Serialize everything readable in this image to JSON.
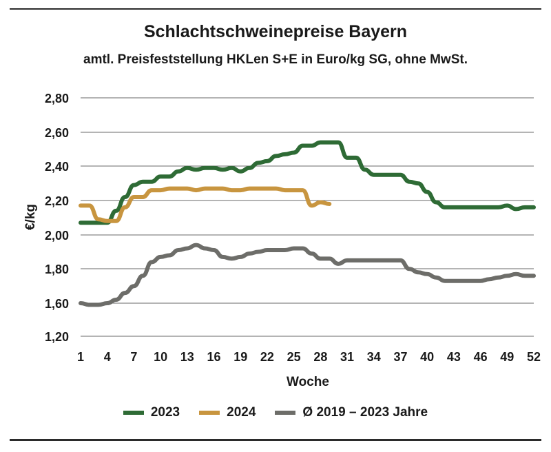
{
  "chart_data": {
    "type": "line",
    "title": "Schlachtschweinepreise Bayern",
    "subtitle": "amtl. Preisfeststellung HKLen S+E in Euro/kg SG, ohne MwSt.",
    "xlabel": "Woche",
    "ylabel": "€/kg",
    "x_ticks": [
      "1",
      "4",
      "7",
      "10",
      "13",
      "16",
      "19",
      "22",
      "25",
      "28",
      "31",
      "34",
      "37",
      "40",
      "43",
      "46",
      "49",
      "52"
    ],
    "y_ticks": [
      "2,80",
      "2,60",
      "2,40",
      "2,20",
      "2,00",
      "1,80",
      "1,60",
      "1,20"
    ],
    "xlim": [
      1,
      52
    ],
    "ylim": [
      1.2,
      2.8
    ],
    "y_scale_note": "axis jumps from 1,60 to 1,20 (one gridline step)",
    "grid": true,
    "legend_position": "bottom",
    "series": [
      {
        "name": "2023",
        "color": "#2e6b35",
        "x": [
          1,
          2,
          3,
          4,
          5,
          6,
          7,
          8,
          9,
          10,
          11,
          12,
          13,
          14,
          15,
          16,
          17,
          18,
          19,
          20,
          21,
          22,
          23,
          24,
          25,
          26,
          27,
          28,
          29,
          30,
          31,
          32,
          33,
          34,
          35,
          36,
          37,
          38,
          39,
          40,
          41,
          42,
          43,
          44,
          45,
          46,
          47,
          48,
          49,
          50,
          51,
          52
        ],
        "values": [
          2.07,
          2.07,
          2.07,
          2.07,
          2.14,
          2.22,
          2.29,
          2.31,
          2.31,
          2.34,
          2.34,
          2.37,
          2.39,
          2.38,
          2.39,
          2.39,
          2.38,
          2.39,
          2.37,
          2.39,
          2.42,
          2.43,
          2.46,
          2.47,
          2.48,
          2.52,
          2.52,
          2.54,
          2.54,
          2.54,
          2.45,
          2.45,
          2.38,
          2.35,
          2.35,
          2.35,
          2.35,
          2.31,
          2.3,
          2.25,
          2.19,
          2.16,
          2.16,
          2.16,
          2.16,
          2.16,
          2.16,
          2.16,
          2.17,
          2.15,
          2.16,
          2.16
        ]
      },
      {
        "name": "2024",
        "color": "#c8953f",
        "x": [
          1,
          2,
          3,
          4,
          5,
          6,
          7,
          8,
          9,
          10,
          11,
          12,
          13,
          14,
          15,
          16,
          17,
          18,
          19,
          20,
          21,
          22,
          23,
          24,
          25,
          26,
          27,
          28,
          29
        ],
        "values": [
          2.17,
          2.17,
          2.09,
          2.08,
          2.08,
          2.16,
          2.22,
          2.22,
          2.26,
          2.26,
          2.27,
          2.27,
          2.27,
          2.26,
          2.27,
          2.27,
          2.27,
          2.26,
          2.26,
          2.27,
          2.27,
          2.27,
          2.27,
          2.26,
          2.26,
          2.26,
          2.17,
          2.19,
          2.18
        ]
      },
      {
        "name": "Ø 2019 – 2023 Jahre",
        "color": "#6d6d69",
        "x": [
          1,
          2,
          3,
          4,
          5,
          6,
          7,
          8,
          9,
          10,
          11,
          12,
          13,
          14,
          15,
          16,
          17,
          18,
          19,
          20,
          21,
          22,
          23,
          24,
          25,
          26,
          27,
          28,
          29,
          30,
          31,
          32,
          33,
          34,
          35,
          36,
          37,
          38,
          39,
          40,
          41,
          42,
          43,
          44,
          45,
          46,
          47,
          48,
          49,
          50,
          51,
          52
        ],
        "values": [
          1.6,
          1.58,
          1.58,
          1.6,
          1.62,
          1.66,
          1.7,
          1.76,
          1.84,
          1.87,
          1.88,
          1.91,
          1.92,
          1.94,
          1.92,
          1.91,
          1.87,
          1.86,
          1.87,
          1.89,
          1.9,
          1.91,
          1.91,
          1.91,
          1.92,
          1.92,
          1.89,
          1.86,
          1.86,
          1.83,
          1.85,
          1.85,
          1.85,
          1.85,
          1.85,
          1.85,
          1.85,
          1.8,
          1.78,
          1.77,
          1.75,
          1.73,
          1.73,
          1.73,
          1.73,
          1.73,
          1.74,
          1.75,
          1.76,
          1.77,
          1.76,
          1.76
        ]
      }
    ]
  },
  "legend": [
    {
      "label": "2023",
      "color": "#2e6b35"
    },
    {
      "label": "2024",
      "color": "#c8953f"
    },
    {
      "label": "Ø 2019 – 2023 Jahre",
      "color": "#6d6d69"
    }
  ]
}
